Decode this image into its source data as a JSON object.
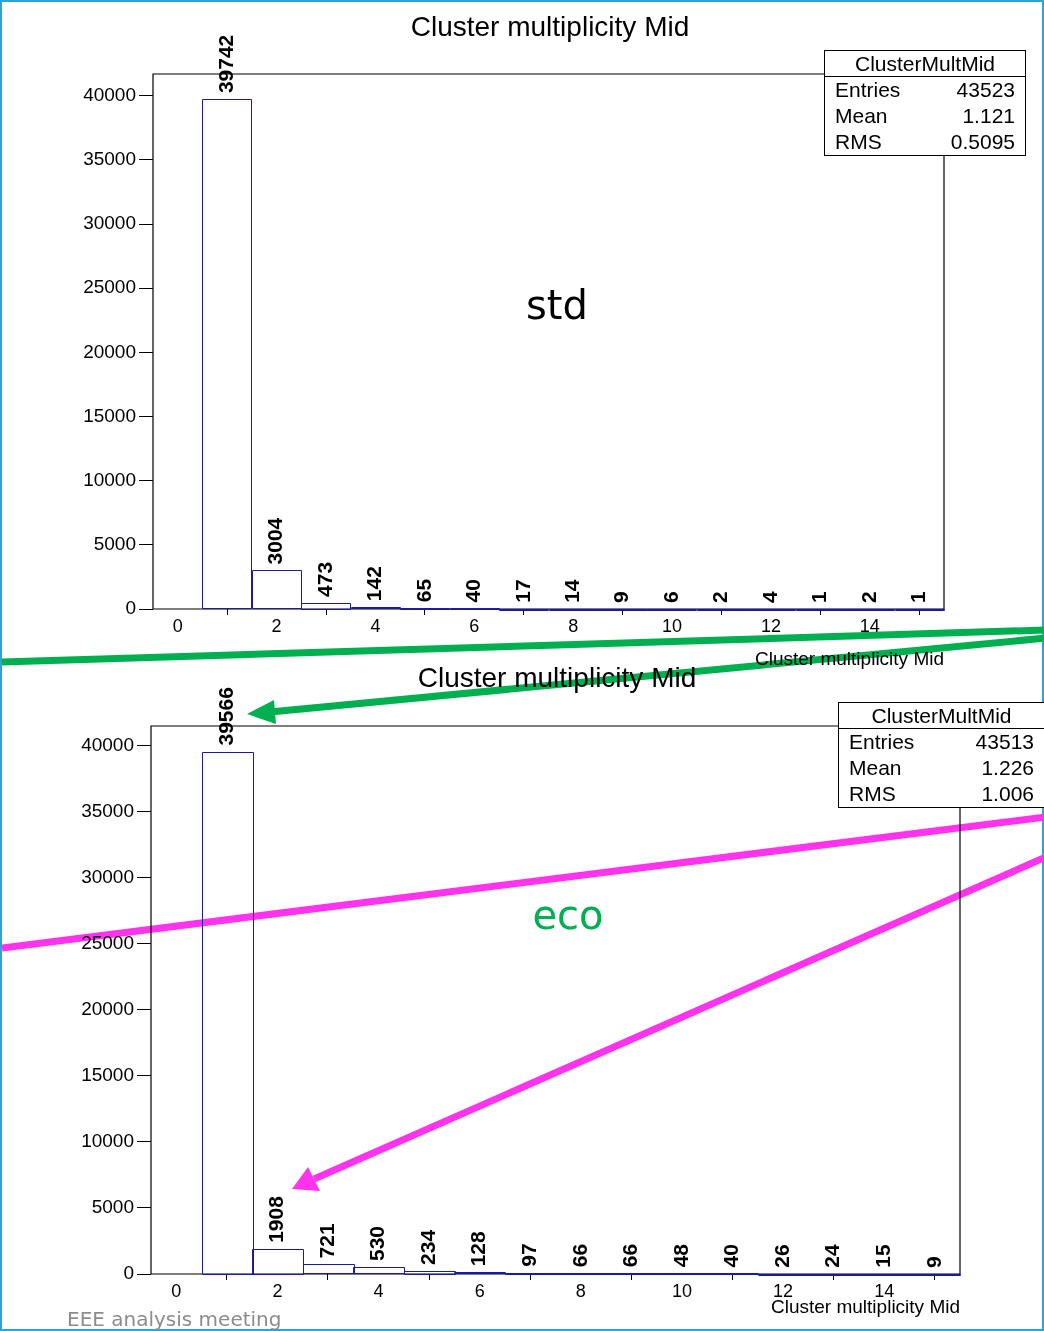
{
  "chart_data": [
    {
      "type": "histogram",
      "title": "Cluster multiplicity Mid",
      "xlabel": "Cluster multiplicity Mid",
      "bins": [
        0.5,
        1.5,
        2.5,
        3.5,
        4.5,
        5.5,
        6.5,
        7.5,
        8.5,
        9.5,
        10.5,
        11.5,
        12.5,
        13.5,
        14.5,
        15.5
      ],
      "values": [
        39742,
        3004,
        473,
        142,
        65,
        40,
        17,
        14,
        9,
        6,
        2,
        4,
        1,
        2,
        1
      ],
      "color": "#1a1aa6",
      "data_labels": true,
      "xlim": [
        -0.5,
        15.5
      ],
      "xticks": [
        0,
        2,
        4,
        6,
        8,
        10,
        12,
        14
      ],
      "ylim": [
        0,
        41700
      ],
      "yticks": [
        0,
        5000,
        10000,
        15000,
        20000,
        25000,
        30000,
        35000,
        40000
      ],
      "grid": false,
      "annotations": [
        "ClusterMultMid",
        "Entries 43523",
        "Mean 1.121",
        "RMS 0.5095",
        "std"
      ]
    },
    {
      "type": "histogram",
      "title": "Cluster multiplicity Mid",
      "xlabel": "Cluster multiplicity Mid",
      "bins": [
        0.5,
        1.5,
        2.5,
        3.5,
        4.5,
        5.5,
        6.5,
        7.5,
        8.5,
        9.5,
        10.5,
        11.5,
        12.5,
        13.5,
        14.5,
        15.5
      ],
      "values": [
        39566,
        1908,
        721,
        530,
        234,
        128,
        97,
        66,
        66,
        48,
        40,
        26,
        24,
        15,
        9
      ],
      "color": "#1a1aa6",
      "data_labels": true,
      "xlim": [
        -0.5,
        15.5
      ],
      "xticks": [
        0,
        2,
        4,
        6,
        8,
        10,
        12,
        14
      ],
      "ylim": [
        0,
        41500
      ],
      "yticks": [
        0,
        5000,
        10000,
        15000,
        20000,
        25000,
        30000,
        35000,
        40000
      ],
      "grid": false,
      "annotations": [
        "ClusterMultMid",
        "Entries 43513",
        "Mean 1.226",
        "RMS 1.006",
        "eco",
        "EEE analysis meeting"
      ]
    }
  ]
}
